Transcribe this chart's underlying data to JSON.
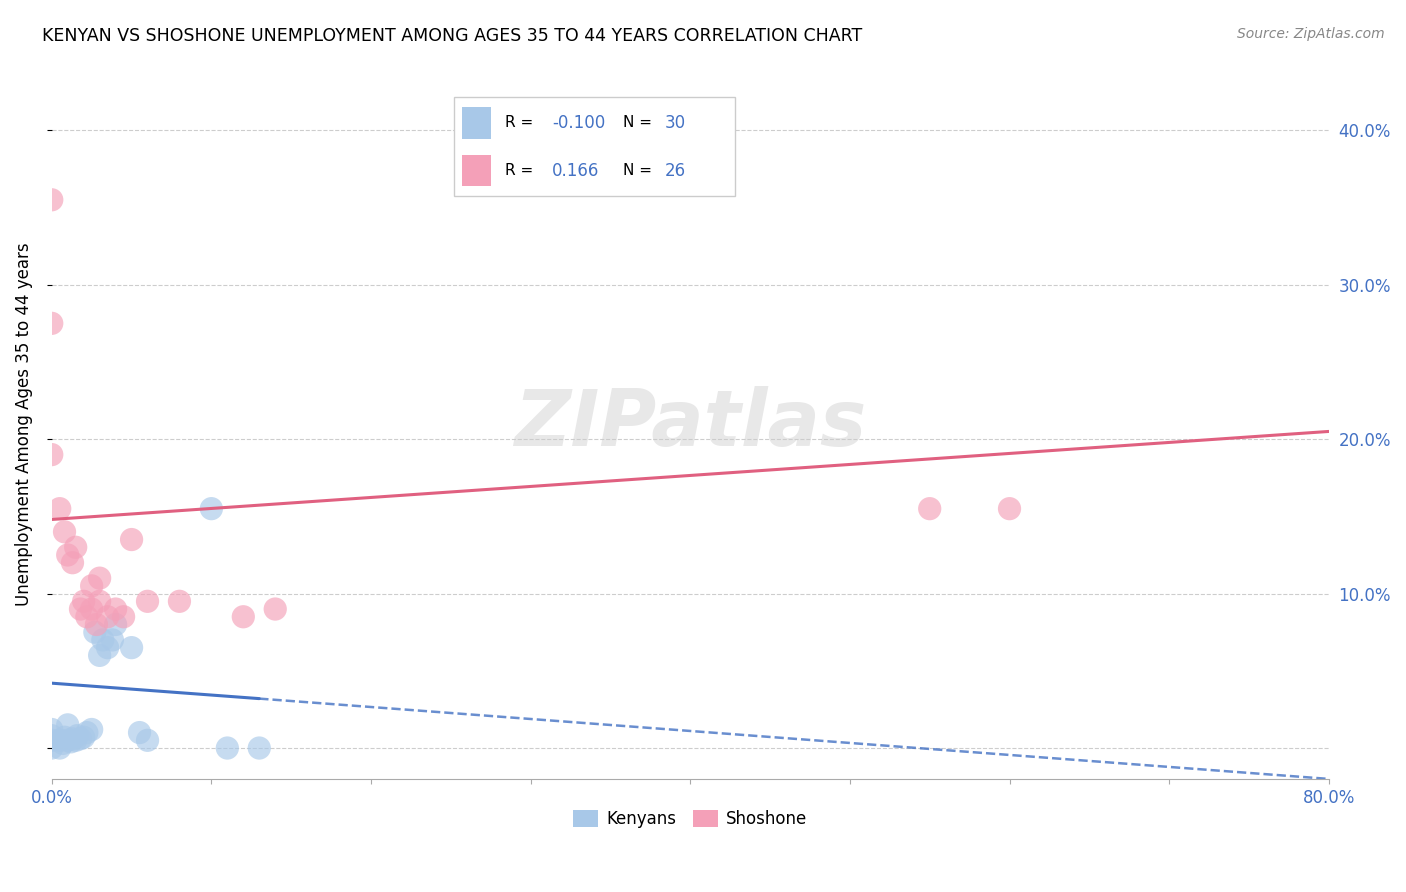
{
  "title": "KENYAN VS SHOSHONE UNEMPLOYMENT AMONG AGES 35 TO 44 YEARS CORRELATION CHART",
  "source": "Source: ZipAtlas.com",
  "ylabel": "Unemployment Among Ages 35 to 44 years",
  "xlim": [
    0.0,
    0.8
  ],
  "ylim": [
    -0.02,
    0.44
  ],
  "kenyan_R": -0.1,
  "kenyan_N": 30,
  "shoshone_R": 0.166,
  "shoshone_N": 26,
  "kenyan_color": "#a8c8e8",
  "shoshone_color": "#f4a0b8",
  "kenyan_line_color": "#4472c4",
  "shoshone_line_color": "#e06080",
  "background_color": "#ffffff",
  "grid_color": "#c8c8c8",
  "kenyan_x": [
    0.0,
    0.0,
    0.0,
    0.0,
    0.005,
    0.005,
    0.007,
    0.008,
    0.01,
    0.01,
    0.012,
    0.013,
    0.015,
    0.016,
    0.018,
    0.02,
    0.022,
    0.025,
    0.027,
    0.03,
    0.032,
    0.035,
    0.038,
    0.04,
    0.05,
    0.055,
    0.06,
    0.1,
    0.11,
    0.13
  ],
  "kenyan_y": [
    0.0,
    0.005,
    0.008,
    0.012,
    0.0,
    0.005,
    0.003,
    0.007,
    0.005,
    0.015,
    0.004,
    0.006,
    0.005,
    0.008,
    0.006,
    0.007,
    0.01,
    0.012,
    0.075,
    0.06,
    0.07,
    0.065,
    0.07,
    0.08,
    0.065,
    0.01,
    0.005,
    0.155,
    0.0,
    0.0
  ],
  "shoshone_x": [
    0.0,
    0.0,
    0.0,
    0.005,
    0.008,
    0.01,
    0.013,
    0.015,
    0.018,
    0.02,
    0.022,
    0.025,
    0.025,
    0.028,
    0.03,
    0.03,
    0.035,
    0.04,
    0.045,
    0.05,
    0.06,
    0.08,
    0.12,
    0.14,
    0.55,
    0.6
  ],
  "shoshone_y": [
    0.19,
    0.275,
    0.355,
    0.155,
    0.14,
    0.125,
    0.12,
    0.13,
    0.09,
    0.095,
    0.085,
    0.09,
    0.105,
    0.08,
    0.095,
    0.11,
    0.085,
    0.09,
    0.085,
    0.135,
    0.095,
    0.095,
    0.085,
    0.09,
    0.155,
    0.155
  ],
  "kenyan_line_x0": 0.0,
  "kenyan_line_x_solid_end": 0.13,
  "kenyan_line_x1": 0.8,
  "kenyan_line_y0": 0.042,
  "kenyan_line_y_solid_end": 0.032,
  "kenyan_line_y1": -0.02,
  "shoshone_line_x0": 0.0,
  "shoshone_line_x1": 0.8,
  "shoshone_line_y0": 0.148,
  "shoshone_line_y1": 0.205
}
